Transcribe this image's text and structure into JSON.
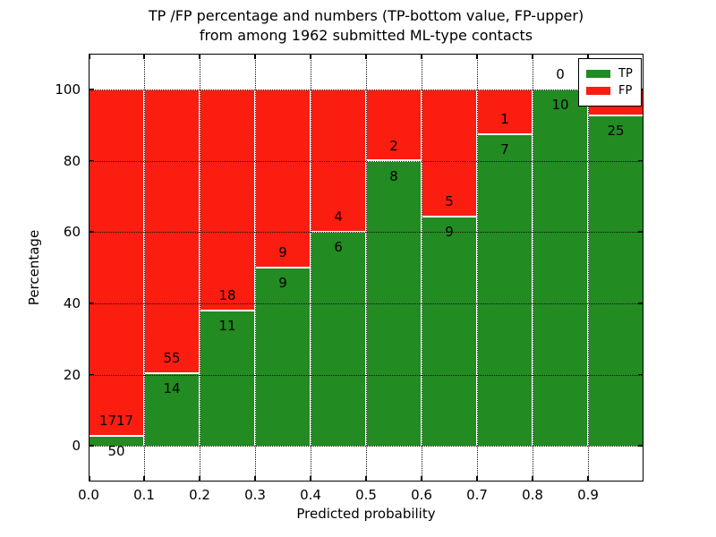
{
  "title_line1": "TP /FP percentage and numbers (TP-bottom value, FP-upper)",
  "title_line2": "from among 1962 submitted ML-type contacts",
  "axes": {
    "xlabel": "Predicted probability",
    "ylabel": "Percentage",
    "x_tick_labels": [
      "0.0",
      "0.1",
      "0.2",
      "0.3",
      "0.4",
      "0.5",
      "0.6",
      "0.7",
      "0.8",
      "0.9"
    ],
    "y_tick_labels": [
      "0",
      "20",
      "40",
      "60",
      "80",
      "100"
    ],
    "y_tick_values": [
      0,
      20,
      40,
      60,
      80,
      100
    ],
    "xlim": [
      0.0,
      1.0
    ],
    "ylim": [
      -10,
      110
    ],
    "grid": "dotted black, on top of bars"
  },
  "legend": {
    "position": "upper right",
    "items": [
      {
        "label": "TP",
        "color": "#228b22"
      },
      {
        "label": "FP",
        "color": "#fa1d10"
      }
    ]
  },
  "chart_data": {
    "type": "bar",
    "stacked": true,
    "normalized_to": 100,
    "title": "TP /FP percentage and numbers (TP-bottom value, FP-upper) from among 1962 submitted ML-type contacts",
    "xlabel": "Predicted probability",
    "ylabel": "Percentage",
    "total_contacts": 1962,
    "bin_edges": [
      0.0,
      0.1,
      0.2,
      0.3,
      0.4,
      0.5,
      0.6,
      0.7,
      0.8,
      0.9,
      1.0
    ],
    "categories": [
      "0.0-0.1",
      "0.1-0.2",
      "0.2-0.3",
      "0.3-0.4",
      "0.4-0.5",
      "0.5-0.6",
      "0.6-0.7",
      "0.7-0.8",
      "0.8-0.9",
      "0.9-1.0"
    ],
    "series": [
      {
        "name": "TP",
        "color": "#228b22",
        "counts": [
          50,
          14,
          11,
          9,
          6,
          8,
          9,
          7,
          10,
          25
        ]
      },
      {
        "name": "FP",
        "color": "#fa1d10",
        "counts": [
          1717,
          55,
          18,
          9,
          4,
          2,
          5,
          1,
          0,
          2
        ]
      }
    ],
    "tp_percent": [
      2.83,
      20.29,
      37.93,
      50.0,
      60.0,
      80.0,
      64.29,
      87.5,
      100.0,
      92.59
    ],
    "fp_percent": [
      97.17,
      79.71,
      62.07,
      50.0,
      40.0,
      20.0,
      35.71,
      12.5,
      0.0,
      7.41
    ],
    "bar_edge_color": "#ffffff"
  }
}
